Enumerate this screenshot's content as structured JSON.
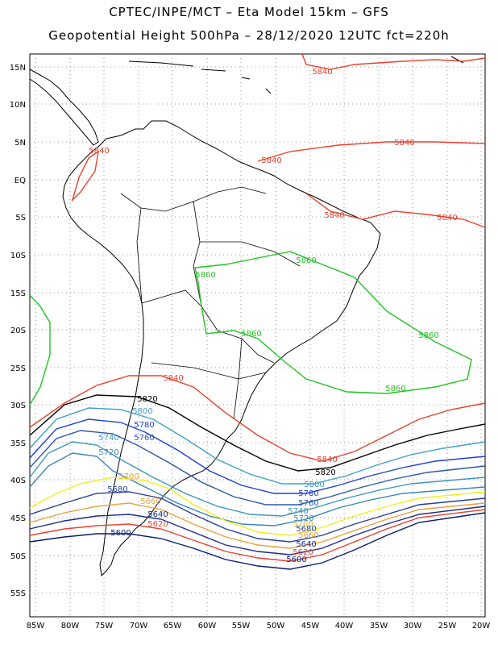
{
  "header": {
    "line1": "CPTEC/INPE/MCT –  Eta Model 15km – GFS",
    "line2": "Geopotential Height 500hPa – 28/12/2020 12UTC fct=220h"
  },
  "axes": {
    "lat_labels": [
      "15N",
      "10N",
      "5N",
      "EQ",
      "5S",
      "10S",
      "15S",
      "20S",
      "25S",
      "30S",
      "35S",
      "40S",
      "45S",
      "50S",
      "55S"
    ],
    "lon_labels": [
      "85W",
      "80W",
      "75W",
      "70W",
      "65W",
      "60W",
      "55W",
      "50W",
      "45W",
      "40W",
      "35W",
      "30W",
      "25W",
      "20W"
    ]
  },
  "colors": {
    "c5600": "#0a1c6e",
    "c5620": "#e8412e",
    "c5640": "#1a2a8c",
    "c5660": "#e8a23c",
    "c5680": "#2a3e9e",
    "c5700": "#f0f020",
    "c5720": "#3a86b8",
    "c5740": "#3f95bb",
    "c5760": "#2c58a8",
    "c5780": "#1f3fd6",
    "c5800": "#3fa0c8",
    "c5820": "#000000",
    "c5840": "#e8412e",
    "c5860": "#22c422",
    "land": "#000000",
    "grid": "#9a9a9a"
  },
  "contour_labels": {
    "north_5840": [
      "5840",
      "5840",
      "5840",
      "5840",
      "5840",
      "5840"
    ],
    "green_5860": [
      "5860",
      "5860",
      "5860",
      "5860",
      "5860"
    ],
    "south_5840": [
      "5840",
      "5840"
    ],
    "ridge_5820": [
      "5820",
      "5820"
    ],
    "ridge_5800": [
      "5800",
      "5800"
    ],
    "ridge_5780": [
      "5780",
      "5780"
    ],
    "ridge_5760": [
      "5760",
      "5760"
    ],
    "ridge_5740": [
      "5740",
      "5740"
    ],
    "ridge_5720": [
      "5720",
      "5720"
    ],
    "ridge_5700": [
      "5700",
      "5700"
    ],
    "ridge_5680": [
      "5680",
      "5680"
    ],
    "ridge_5660": [
      "5660",
      "5660"
    ],
    "ridge_5640": [
      "5640",
      "5640"
    ],
    "ridge_5620": [
      "5620",
      "5620"
    ],
    "ridge_5600": [
      "5600",
      "5600"
    ]
  }
}
